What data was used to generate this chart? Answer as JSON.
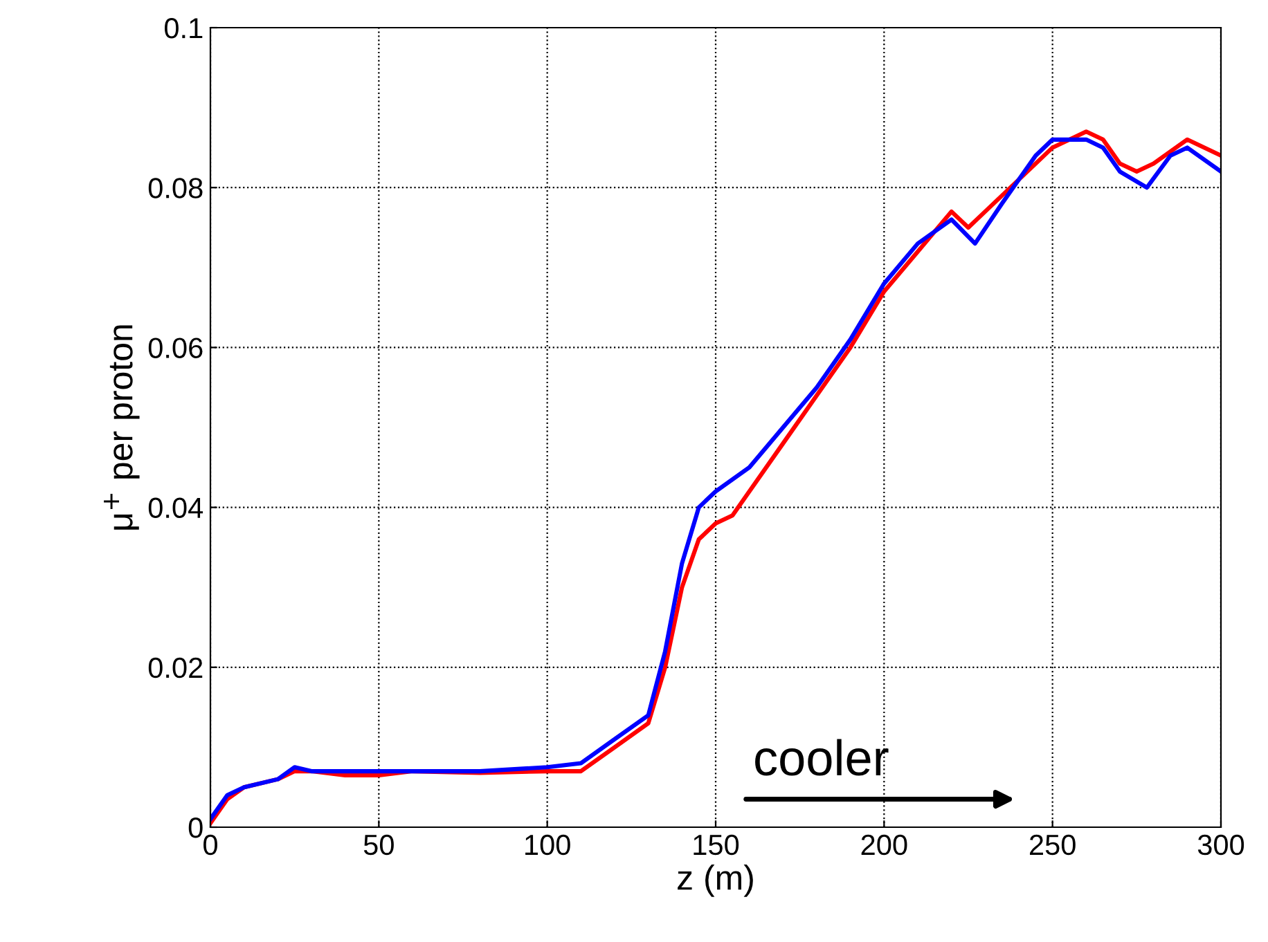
{
  "chart_data": {
    "type": "line",
    "xlabel": "z (m)",
    "ylabel": "μ$^{+}$ per proton",
    "x": [
      0,
      5,
      10,
      20,
      25,
      30,
      40,
      50,
      60,
      80,
      100,
      110,
      120,
      130,
      135,
      140,
      145,
      150,
      155,
      160,
      170,
      180,
      190,
      200,
      210,
      220,
      225,
      230,
      240,
      250,
      260,
      265,
      270,
      275,
      280,
      290,
      300
    ],
    "series": [
      {
        "color": "#ff0000",
        "values": [
          0.0005,
          0.0035,
          0.005,
          0.006,
          0.007,
          0.007,
          0.0065,
          0.0065,
          0.007,
          0.0068,
          0.007,
          0.007,
          0.01,
          0.013,
          0.02,
          0.03,
          0.036,
          0.038,
          0.039,
          0.042,
          0.048,
          0.054,
          0.06,
          0.067,
          0.072,
          0.077,
          0.075,
          0.077,
          0.081,
          0.085,
          0.087,
          0.086,
          0.083,
          0.082,
          0.083,
          0.086,
          0.084
        ]
      },
      {
        "color": "#0000ff",
        "x": [
          0,
          5,
          10,
          20,
          25,
          30,
          50,
          80,
          100,
          110,
          120,
          130,
          135,
          140,
          145,
          150,
          160,
          170,
          180,
          190,
          200,
          210,
          220,
          227,
          235,
          245,
          250,
          260,
          265,
          270,
          278,
          285,
          290,
          300
        ],
        "values": [
          0.001,
          0.004,
          0.005,
          0.006,
          0.0075,
          0.007,
          0.007,
          0.007,
          0.0075,
          0.008,
          0.011,
          0.014,
          0.022,
          0.033,
          0.04,
          0.042,
          0.045,
          0.05,
          0.055,
          0.061,
          0.068,
          0.073,
          0.076,
          0.073,
          0.078,
          0.084,
          0.086,
          0.086,
          0.085,
          0.082,
          0.08,
          0.084,
          0.085,
          0.082
        ]
      }
    ],
    "xlim": [
      0,
      300
    ],
    "xticks": [
      0,
      50,
      100,
      150,
      200,
      250,
      300
    ],
    "ylim": [
      0,
      0.1
    ],
    "yticks": [
      0,
      0.02,
      0.04,
      0.06,
      0.08,
      0.1
    ],
    "grid": true,
    "line_style": "solid",
    "marker": "none",
    "annotations": [
      "cooler"
    ]
  }
}
